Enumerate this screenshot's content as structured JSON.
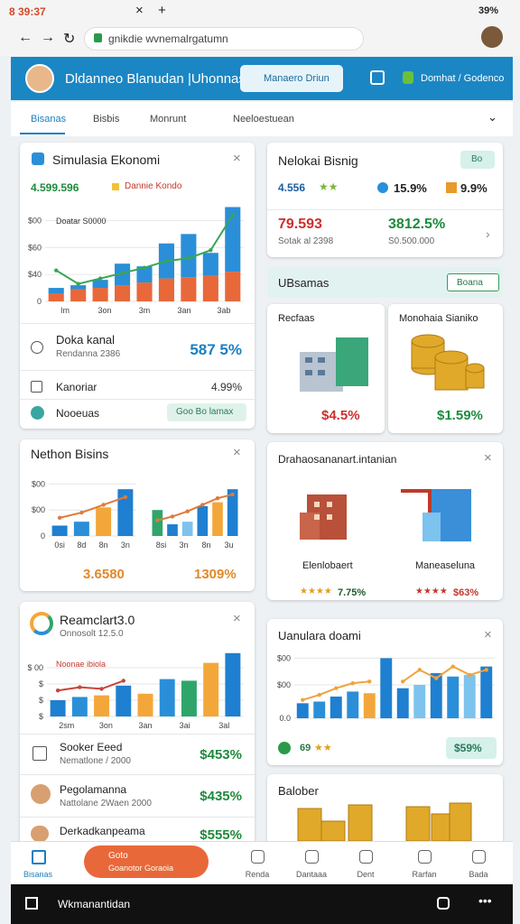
{
  "status_bar": {
    "time": "8 39:37",
    "battery": "39%"
  },
  "browser": {
    "url": "gnikdie wvnemalrgatumn"
  },
  "header": {
    "title": "Dldanneo Blanudan |Uhonnasia",
    "button": "Manaero Driun",
    "action": "Domhat / Godenco"
  },
  "tabs": [
    "Bisanas",
    "Bisbis",
    "Monrunt",
    "Neeloestuean"
  ],
  "simulasi": {
    "title": "Simulasia Ekonomi",
    "value": "4.599.596",
    "legend": "Dannie Kondo",
    "inner_legend": "Doatar S0000",
    "chart": {
      "ylim": [
        0,
        750
      ],
      "yticks": [
        0,
        {
          "value": 200,
          "label": "$40"
        },
        {
          "value": 400,
          "label": "$60"
        },
        {
          "value": 600,
          "label": "$00"
        }
      ],
      "stacked": true,
      "series": [
        {
          "color": "#e8683a",
          "values": [
            60,
            90,
            100,
            120,
            140,
            170,
            180,
            190,
            220
          ]
        },
        {
          "color": "#2a8fd8",
          "values": [
            40,
            30,
            60,
            160,
            120,
            260,
            320,
            170,
            480
          ]
        }
      ],
      "line": {
        "color": "#3aa655",
        "values": [
          230,
          130,
          170,
          210,
          250,
          300,
          320,
          380,
          640
        ]
      },
      "x_labels": [
        "Im",
        "3on",
        "3m",
        "3an",
        "3ab"
      ]
    },
    "rows": [
      {
        "label": "Doka kanal",
        "sub": "Rendanna 2386",
        "value": "587 5%"
      },
      {
        "label": "Kanoriar",
        "value": "4.99%"
      },
      {
        "label": "Nooeuas",
        "value": "Goo Bo lamax"
      }
    ]
  },
  "nethon": {
    "title": "Nethon Bisins",
    "charts": [
      {
        "ylim": [
          0,
          5
        ],
        "yticks": [
          0,
          {
            "value": 2,
            "label": "$00"
          },
          {
            "value": 4,
            "label": "$00"
          }
        ],
        "series": [
          {
            "colors": [
              "#1f7fd0",
              "#2a8fd8",
              "#f3a73a",
              "#1f7fd0"
            ],
            "values": [
              0.8,
              1.1,
              2.2,
              3.6
            ]
          }
        ],
        "line": {
          "color": "#e07a3a",
          "values": [
            1.4,
            1.8,
            2.4,
            3.0
          ]
        },
        "x_labels": [
          "0si",
          "8d",
          "8n",
          "3n"
        ]
      },
      {
        "ylim": [
          0,
          5
        ],
        "series": [
          {
            "colors": [
              "#2fa56a",
              "#1f7fd0",
              "#7cc3ee",
              "#1f7fd0",
              "#f3a73a",
              "#1f7fd0"
            ],
            "values": [
              2.0,
              0.9,
              1.1,
              2.3,
              2.6,
              3.6
            ]
          }
        ],
        "line": {
          "color": "#e07a3a",
          "values": [
            1.2,
            1.5,
            1.9,
            2.4,
            2.9,
            3.2
          ]
        },
        "x_labels": [
          "8si",
          "3n",
          "8n",
          "3u"
        ]
      }
    ],
    "values": [
      "3.6580",
      "1309%"
    ]
  },
  "reamclart": {
    "title": "Reamclart3.0",
    "sub": "Onnosolt 12.5.0",
    "inner_legend": "Noonae ibiola",
    "chart": {
      "ylim": [
        0,
        4
      ],
      "yticks": [
        {
          "value": 0,
          "label": "$"
        },
        {
          "value": 1,
          "label": "$"
        },
        {
          "value": 2,
          "label": "$"
        },
        {
          "value": 3,
          "label": "$ 00"
        }
      ],
      "series": [
        {
          "colors": [
            "#1f7fd0",
            "#2a8fd8",
            "#f3a73a",
            "#1f7fd0",
            "#f3a73a",
            "#2a8fd8",
            "#2fa56a",
            "#f3a73a",
            "#1f7fd0"
          ],
          "values": [
            1.0,
            1.2,
            1.3,
            1.9,
            1.4,
            2.3,
            2.2,
            3.3,
            3.9
          ]
        }
      ],
      "line": {
        "color": "#c8443a",
        "values": [
          1.6,
          1.8,
          1.7,
          2.2,
          null,
          null,
          null,
          null,
          null
        ]
      },
      "x_labels": [
        "2sm",
        "3on",
        "3an",
        "3ai",
        "3al"
      ]
    },
    "rows": [
      {
        "label": "Sooker Eeed",
        "sub": "Nematlone / 2000",
        "value": "$453%"
      },
      {
        "label": "Pegolamanna",
        "sub": "Nattolane 2Waen 2000",
        "value": "$435%"
      },
      {
        "label": "Derkadkanpeama",
        "value": "$555%"
      }
    ]
  },
  "nelokai": {
    "title": "Nelokai Bisnig",
    "pill": "Bo",
    "stat1": "4.556",
    "stat2": "15.9%",
    "stat3": "9.9%",
    "left_value": "79.593",
    "left_sub": "Sotak al 2398",
    "right_value": "3812.5%",
    "right_sub": "S0.500.000"
  },
  "section": {
    "title": "UBsamas",
    "button": "Boana"
  },
  "tiles": [
    {
      "title": "Recfaas",
      "value": "$4.5%"
    },
    {
      "title": "Monohaia Sianiko",
      "value": "$1.59%"
    }
  ],
  "drahao": {
    "title": "Drahaosananart.intanian",
    "items": [
      {
        "label": "Elenlobaert",
        "value": "7.75%"
      },
      {
        "label": "Maneaseluna",
        "value": "$63%"
      }
    ]
  },
  "uanulara": {
    "title": "Uanulara doami",
    "chart": {
      "ylim": [
        0,
        4
      ],
      "yticks": [
        {
          "value": 0,
          "label": "0.0"
        },
        {
          "value": 2,
          "label": "$00"
        },
        {
          "value": 3.6,
          "label": "$00"
        }
      ],
      "series": [
        {
          "colors": [
            "#1f7fd0",
            "#2a8fd8",
            "#1f7fd0",
            "#2a8fd8",
            "#f3a73a",
            "#1f7fd0",
            "#1f7fd0",
            "#7cc3ee",
            "#1f7fd0",
            "#2a8fd8",
            "#7cc3ee",
            "#1f7fd0"
          ],
          "values": [
            0.9,
            1.0,
            1.3,
            1.6,
            1.5,
            3.6,
            1.8,
            2.0,
            2.7,
            2.5,
            2.6,
            3.1
          ]
        }
      ],
      "line": {
        "color": "#f0a33a",
        "values": [
          1.1,
          1.4,
          1.8,
          2.1,
          2.2,
          null,
          2.2,
          2.9,
          2.4,
          3.1,
          2.6,
          2.9
        ]
      }
    },
    "stars": "69",
    "pill": "$59%"
  },
  "balober": {
    "title": "Balober"
  },
  "bottom_nav": {
    "home": "Bisanas",
    "cta_title": "Goto",
    "cta_sub": "Goanotor Goraoia",
    "items": [
      "Renda",
      "Dantaaa",
      "Dent",
      "Rarfan",
      "Bada"
    ]
  },
  "system_nav": {
    "label": "Wkmanantidan"
  }
}
